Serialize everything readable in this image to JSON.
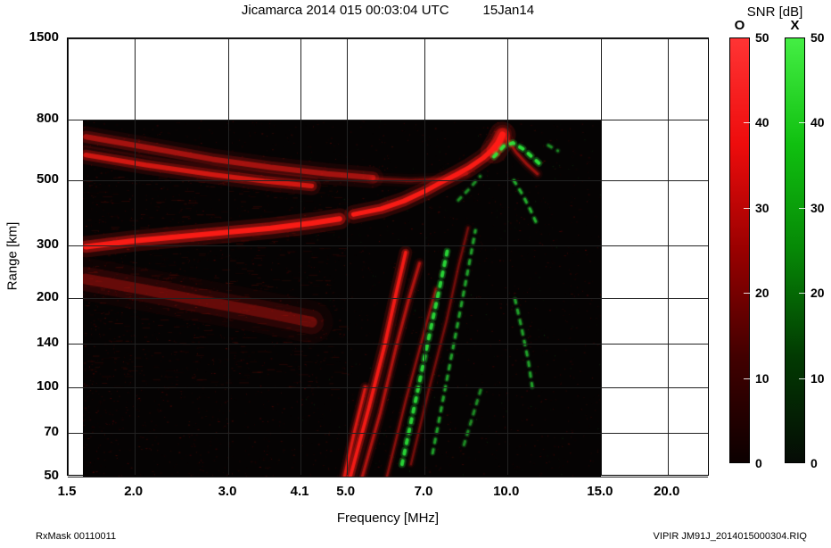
{
  "chart_data": {
    "type": "heatmap",
    "subtype": "ionogram",
    "title": "Jicamarca 2014 015 00:03:04 UTC",
    "date_label": "15Jan14",
    "xlabel": "Frequency [MHz]",
    "ylabel": "Range [km]",
    "x_scale": "log",
    "y_scale": "log",
    "xlim": [
      1.5,
      24.0
    ],
    "ylim": [
      50,
      1500
    ],
    "x_ticks": [
      "1.5",
      "2.0",
      "3.0",
      "4.1",
      "5.0",
      "7.0",
      "10.0",
      "15.0",
      "20.0"
    ],
    "y_ticks": [
      "1500",
      "800",
      "500",
      "300",
      "200",
      "140",
      "100",
      "70",
      "50"
    ],
    "grid": true,
    "data_region": {
      "f_min": 1.6,
      "f_max": 15.0,
      "r_min": 50,
      "r_max": 800,
      "background": "#050303"
    },
    "colorbar": {
      "title": "SNR [dB]",
      "min": 0,
      "max": 50,
      "bars": [
        {
          "label": "O",
          "ticks": [
            "50",
            "40",
            "30",
            "20",
            "10",
            "0"
          ],
          "gradient": [
            "#ff3434",
            "#ee0c0c",
            "#990000",
            "#420000",
            "#0c0000"
          ]
        },
        {
          "label": "X",
          "ticks": [
            "50",
            "40",
            "30",
            "20",
            "10",
            "0"
          ],
          "gradient": [
            "#44ee44",
            "#10c010",
            "#068806",
            "#023a02",
            "#050b05"
          ]
        }
      ]
    },
    "traces": [
      {
        "name": "f-layer-o-low",
        "mode": "O",
        "style": "solid",
        "width": 8,
        "intensity": 0.95,
        "points": [
          [
            1.62,
            298
          ],
          [
            2.0,
            312
          ],
          [
            2.7,
            328
          ],
          [
            3.6,
            344
          ],
          [
            4.3,
            358
          ],
          [
            4.85,
            370
          ]
        ]
      },
      {
        "name": "f-layer-o-high",
        "mode": "O",
        "style": "solid",
        "width": 7,
        "intensity": 0.95,
        "points": [
          [
            5.15,
            383
          ],
          [
            5.8,
            400
          ],
          [
            6.4,
            425
          ],
          [
            7.0,
            458
          ],
          [
            7.5,
            490
          ],
          [
            8.0,
            520
          ],
          [
            8.5,
            552
          ],
          [
            9.0,
            592
          ],
          [
            9.35,
            630
          ],
          [
            9.6,
            668
          ],
          [
            9.8,
            715
          ]
        ]
      },
      {
        "name": "f-cusp",
        "mode": "O",
        "style": "solid",
        "width": 10,
        "intensity": 0.9,
        "points": [
          [
            9.45,
            630
          ],
          [
            9.65,
            670
          ],
          [
            9.8,
            710
          ]
        ]
      },
      {
        "name": "spread-arc-outer",
        "mode": "O",
        "style": "solid",
        "width": 8,
        "intensity": 0.5,
        "points": [
          [
            1.62,
            700
          ],
          [
            2.1,
            645
          ],
          [
            2.8,
            588
          ],
          [
            3.6,
            552
          ],
          [
            4.6,
            525
          ],
          [
            5.6,
            510
          ]
        ]
      },
      {
        "name": "spread-arc-inner",
        "mode": "O",
        "style": "solid",
        "width": 7,
        "intensity": 0.7,
        "points": [
          [
            1.62,
            608
          ],
          [
            2.1,
            562
          ],
          [
            2.8,
            522
          ],
          [
            3.5,
            496
          ],
          [
            4.3,
            478
          ]
        ]
      },
      {
        "name": "spread-arc-extension",
        "mode": "O",
        "style": "solid",
        "width": 5,
        "intensity": 0.3,
        "points": [
          [
            5.6,
            505
          ],
          [
            6.6,
            498
          ],
          [
            7.6,
            505
          ],
          [
            8.4,
            525
          ]
        ]
      },
      {
        "name": "e-diffuse-band",
        "mode": "O",
        "style": "solid",
        "width": 16,
        "intensity": 0.28,
        "points": [
          [
            1.62,
            232
          ],
          [
            2.1,
            213
          ],
          [
            2.7,
            195
          ],
          [
            3.5,
            179
          ],
          [
            4.3,
            166
          ]
        ]
      },
      {
        "name": "oblique-streak-1",
        "mode": "O",
        "style": "solid",
        "width": 5,
        "intensity": 0.9,
        "points": [
          [
            5.08,
            50
          ],
          [
            5.5,
            85
          ],
          [
            5.9,
            140
          ],
          [
            6.2,
            210
          ],
          [
            6.45,
            285
          ]
        ]
      },
      {
        "name": "oblique-streak-2",
        "mode": "O",
        "style": "solid",
        "width": 4,
        "intensity": 0.55,
        "points": [
          [
            5.35,
            50
          ],
          [
            5.78,
            82
          ],
          [
            6.18,
            135
          ],
          [
            6.55,
            200
          ],
          [
            6.85,
            262
          ]
        ]
      },
      {
        "name": "oblique-streak-3",
        "mode": "O",
        "style": "solid",
        "width": 4,
        "intensity": 0.75,
        "points": [
          [
            4.95,
            50
          ],
          [
            5.18,
            72
          ],
          [
            5.42,
            100
          ]
        ]
      },
      {
        "name": "oblique-streak-4",
        "mode": "O",
        "style": "solid",
        "width": 3,
        "intensity": 0.4,
        "points": [
          [
            5.95,
            50
          ],
          [
            6.45,
            90
          ],
          [
            6.95,
            148
          ],
          [
            7.35,
            215
          ]
        ]
      },
      {
        "name": "oblique-streak-5",
        "mode": "O",
        "style": "solid",
        "width": 3,
        "intensity": 0.32,
        "points": [
          [
            6.6,
            55
          ],
          [
            7.15,
            100
          ],
          [
            7.7,
            168
          ],
          [
            8.1,
            255
          ],
          [
            8.45,
            345
          ]
        ]
      },
      {
        "name": "post-cusp-descending",
        "mode": "O",
        "style": "solid",
        "width": 4,
        "intensity": 0.45,
        "points": [
          [
            10.0,
            690
          ],
          [
            10.4,
            620
          ],
          [
            10.9,
            565
          ],
          [
            11.4,
            525
          ]
        ]
      },
      {
        "name": "x-oblique-1",
        "mode": "X",
        "style": "dashed",
        "width": 4,
        "intensity": 0.85,
        "points": [
          [
            6.35,
            55
          ],
          [
            6.75,
            92
          ],
          [
            7.1,
            142
          ],
          [
            7.45,
            212
          ],
          [
            7.72,
            288
          ]
        ]
      },
      {
        "name": "x-oblique-2",
        "mode": "X",
        "style": "dashed",
        "width": 3,
        "intensity": 0.6,
        "points": [
          [
            7.25,
            60
          ],
          [
            7.7,
            105
          ],
          [
            8.1,
            168
          ],
          [
            8.45,
            250
          ],
          [
            8.72,
            338
          ]
        ]
      },
      {
        "name": "x-cusp-arc",
        "mode": "X",
        "style": "dashed",
        "width": 4,
        "intensity": 0.9,
        "points": [
          [
            9.45,
            600
          ],
          [
            9.85,
            650
          ],
          [
            10.25,
            668
          ],
          [
            10.7,
            638
          ],
          [
            11.15,
            598
          ],
          [
            11.5,
            568
          ]
        ]
      },
      {
        "name": "x-mid-segments",
        "mode": "X",
        "style": "dashed",
        "width": 3,
        "intensity": 0.65,
        "points": [
          [
            10.3,
            498
          ],
          [
            10.7,
            445
          ],
          [
            11.05,
            398
          ],
          [
            11.4,
            352
          ]
        ]
      },
      {
        "name": "x-low-segments",
        "mode": "X",
        "style": "dashed",
        "width": 3,
        "intensity": 0.6,
        "points": [
          [
            10.35,
            198
          ],
          [
            10.65,
            158
          ],
          [
            10.95,
            124
          ],
          [
            11.15,
            100
          ]
        ]
      },
      {
        "name": "x-bottom-specks",
        "mode": "X",
        "style": "dashed",
        "width": 3,
        "intensity": 0.5,
        "points": [
          [
            8.3,
            64
          ],
          [
            8.62,
            80
          ],
          [
            8.95,
            100
          ]
        ]
      },
      {
        "name": "x-f-side-specks",
        "mode": "X",
        "style": "dashed",
        "width": 3,
        "intensity": 0.5,
        "points": [
          [
            8.1,
            428
          ],
          [
            8.5,
            468
          ],
          [
            8.9,
            515
          ]
        ]
      },
      {
        "name": "x-top-right-specks",
        "mode": "X",
        "style": "dashed",
        "width": 3,
        "intensity": 0.5,
        "points": [
          [
            11.95,
            655
          ],
          [
            12.45,
            628
          ]
        ]
      }
    ]
  },
  "footer": {
    "left_text": "RxMask 00110011",
    "right_text": "VIPIR  JM91J_2014015000304.RIQ"
  }
}
